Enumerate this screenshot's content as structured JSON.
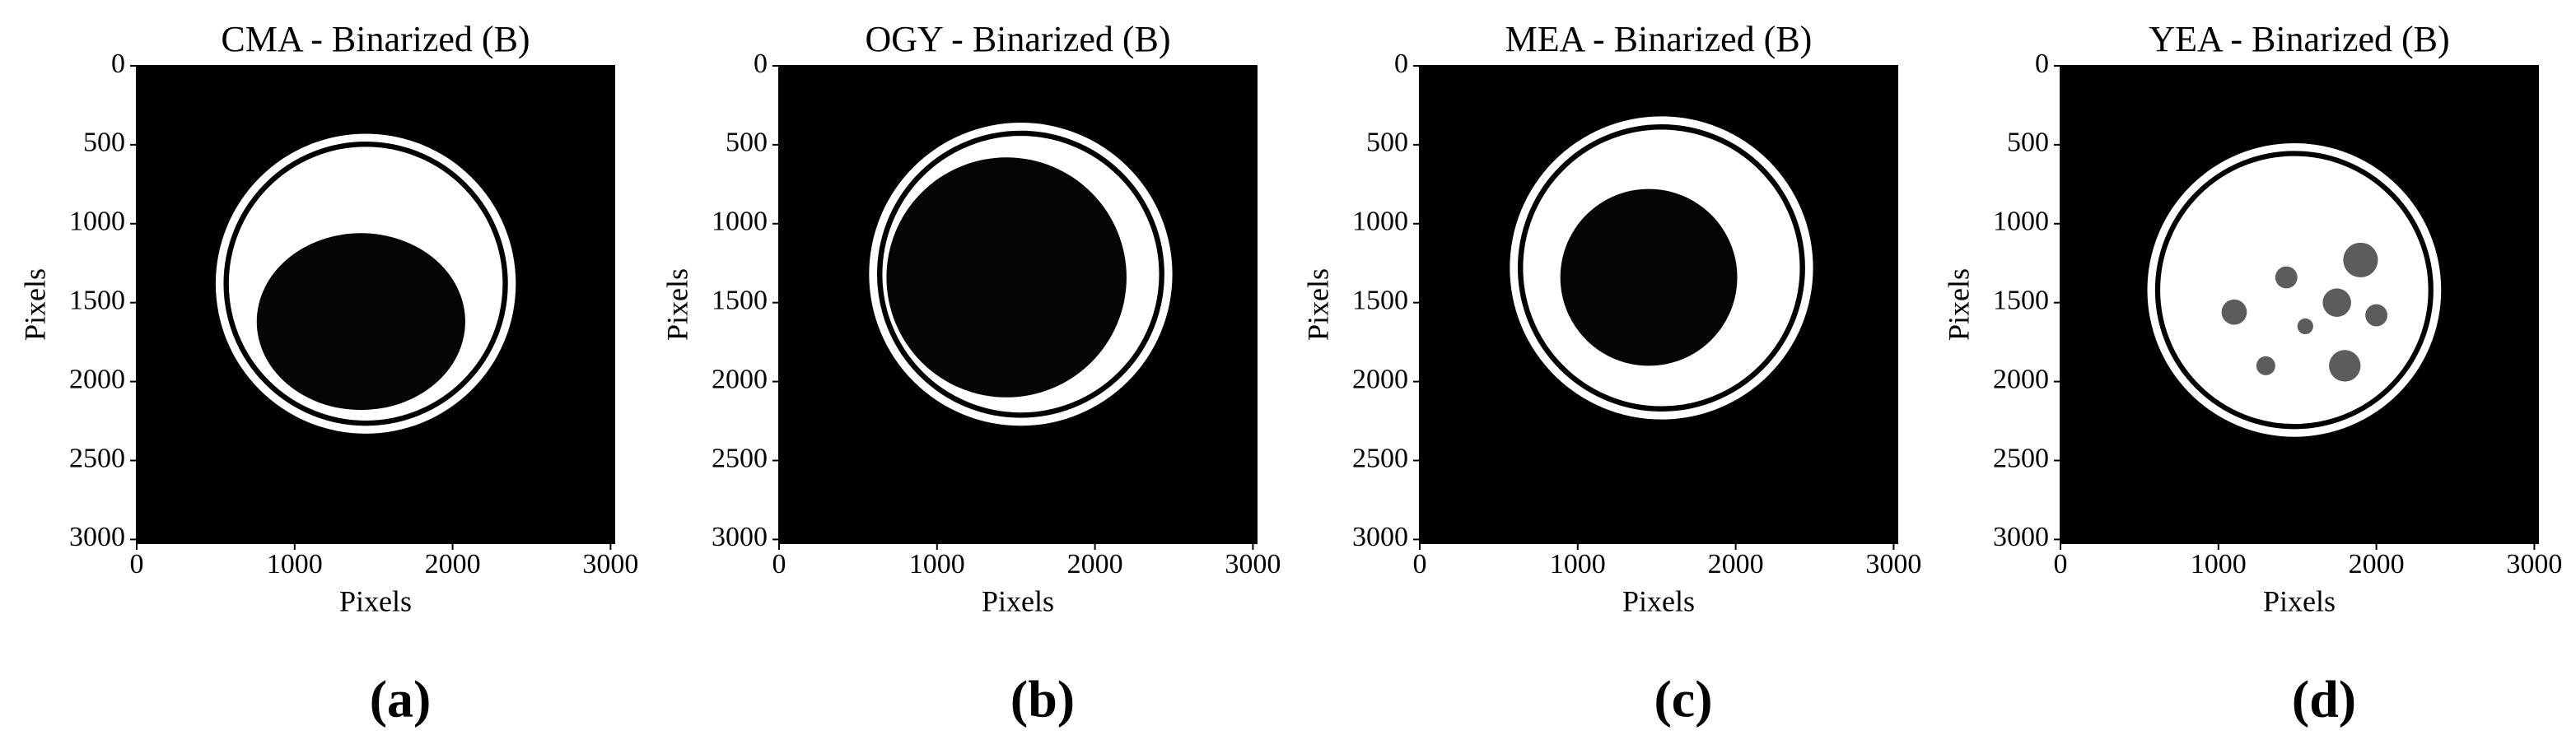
{
  "chart_data": [
    {
      "type": "image",
      "title": "CMA - Binarized (B)",
      "caption": "(a)",
      "xlabel": "Pixels",
      "ylabel": "Pixels",
      "xlim": [
        0,
        3024
      ],
      "ylim": [
        3024,
        0
      ],
      "xticks": [
        0,
        1000,
        2000,
        3000
      ],
      "yticks": [
        0,
        500,
        1000,
        1500,
        2000,
        2500,
        3000
      ]
    },
    {
      "type": "image",
      "title": "OGY - Binarized (B)",
      "caption": "(b)",
      "xlabel": "Pixels",
      "ylabel": "Pixels",
      "xlim": [
        0,
        3024
      ],
      "ylim": [
        3024,
        0
      ],
      "xticks": [
        0,
        1000,
        2000,
        3000
      ],
      "yticks": [
        0,
        500,
        1000,
        1500,
        2000,
        2500,
        3000
      ]
    },
    {
      "type": "image",
      "title": "MEA - Binarized (B)",
      "caption": "(c)",
      "xlabel": "Pixels",
      "ylabel": "Pixels",
      "xlim": [
        0,
        3024
      ],
      "ylim": [
        3024,
        0
      ],
      "xticks": [
        0,
        1000,
        2000,
        3000
      ],
      "yticks": [
        0,
        500,
        1000,
        1500,
        2000,
        2500,
        3000
      ]
    },
    {
      "type": "image",
      "title": "YEA - Binarized (B)",
      "caption": "(d)",
      "xlabel": "Pixels",
      "ylabel": "Pixels",
      "xlim": [
        0,
        3024
      ],
      "ylim": [
        3024,
        0
      ],
      "xticks": [
        0,
        1000,
        2000,
        3000
      ],
      "yticks": [
        0,
        500,
        1000,
        1500,
        2000,
        2500,
        3000
      ]
    }
  ]
}
